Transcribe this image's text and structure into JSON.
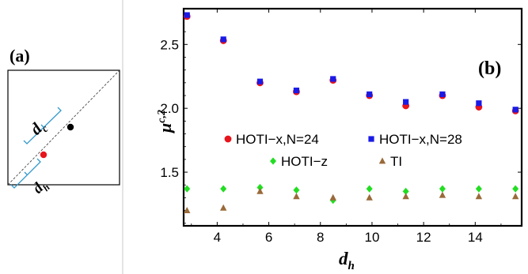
{
  "panel_a": {
    "label": "(a)",
    "dc_label": "d",
    "dc_sub": "c",
    "dh_label": "d",
    "dh_sub": "h"
  },
  "chart_data": {
    "type": "scatter",
    "panel_label": "(b)",
    "title": "",
    "xlabel": "d",
    "xlabel_sub": "h",
    "ylabel": "μ",
    "ylabel_sup": "c,2",
    "xlim": [
      2.7,
      15.8
    ],
    "ylim": [
      1.08,
      2.78
    ],
    "xticks": [
      4,
      6,
      8,
      10,
      12,
      14
    ],
    "yticks": [
      1.5,
      2.0,
      2.5
    ],
    "ytick_labels": [
      "1.5",
      "2.0",
      "2.5"
    ],
    "x": [
      2.83,
      4.24,
      5.66,
      7.07,
      8.49,
      9.9,
      11.31,
      12.73,
      14.14,
      15.56
    ],
    "series": [
      {
        "name": "HOTI−x,N=24",
        "color": "#e8141c",
        "marker": "circle",
        "values": [
          2.72,
          2.53,
          2.2,
          2.13,
          2.22,
          2.1,
          2.02,
          2.1,
          2.01,
          1.98
        ]
      },
      {
        "name": "HOTI−x,N=28",
        "color": "#1a1ae6",
        "marker": "square",
        "values": [
          2.73,
          2.54,
          2.21,
          2.14,
          2.23,
          2.11,
          2.05,
          2.11,
          2.04,
          1.99
        ]
      },
      {
        "name": "HOTI−z",
        "color": "#22dd22",
        "marker": "diamond",
        "values": [
          1.37,
          1.37,
          1.38,
          1.36,
          1.28,
          1.37,
          1.35,
          1.37,
          1.37,
          1.37
        ]
      },
      {
        "name": "TI",
        "color": "#9a6a3a",
        "marker": "triangle",
        "values": [
          1.2,
          1.22,
          1.35,
          1.31,
          1.3,
          1.3,
          1.31,
          1.32,
          1.31,
          1.31
        ]
      }
    ]
  }
}
